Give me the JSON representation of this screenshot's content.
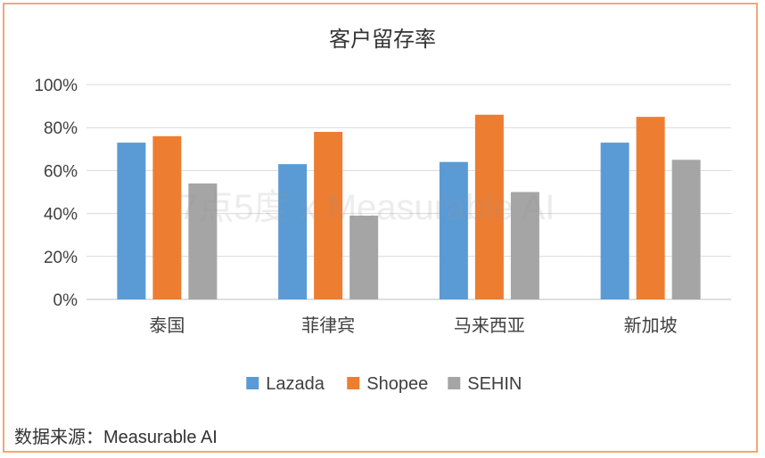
{
  "chart_data": {
    "type": "bar",
    "title": "客户留存率",
    "categories": [
      "泰国",
      "菲律宾",
      "马来西亚",
      "新加坡"
    ],
    "series": [
      {
        "name": "Lazada",
        "color": "#5b9bd5",
        "values": [
          73,
          63,
          64,
          73
        ]
      },
      {
        "name": "Shopee",
        "color": "#ed7d31",
        "values": [
          76,
          78,
          86,
          85
        ]
      },
      {
        "name": "SEHIN",
        "color": "#a5a5a5",
        "values": [
          54,
          39,
          50,
          65
        ]
      }
    ],
    "ylim": [
      0,
      100
    ],
    "yticks": [
      0,
      20,
      40,
      60,
      80,
      100
    ],
    "ytick_labels": [
      "0%",
      "20%",
      "40%",
      "60%",
      "80%",
      "100%"
    ],
    "grid": true,
    "legend_position": "bottom"
  },
  "source": {
    "label": "数据来源：",
    "value": "Measurable AI"
  },
  "watermark": "7点5度 x Measurable AI"
}
